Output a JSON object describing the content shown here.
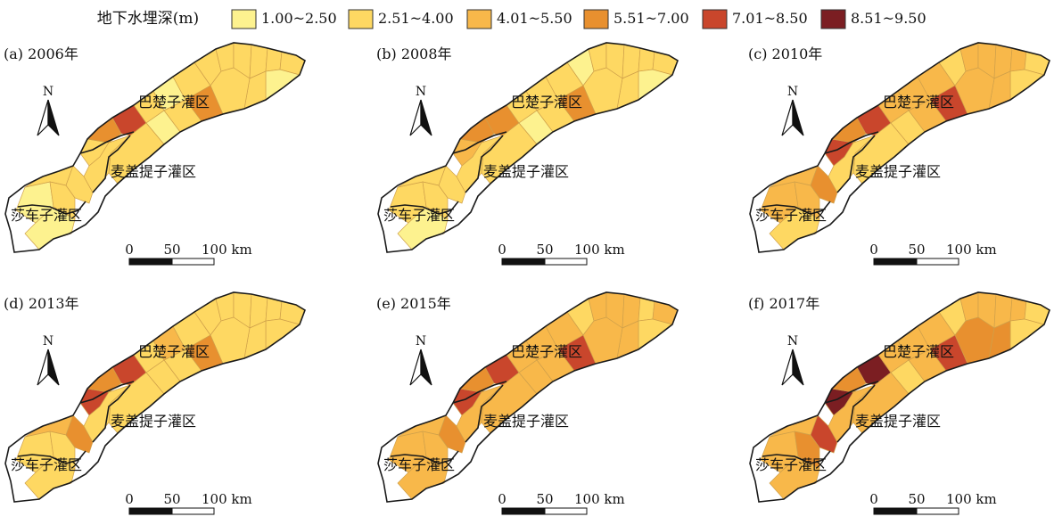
{
  "legend": {
    "title": "地下水埋深(m)",
    "classes": [
      {
        "label": "1.00~2.50",
        "color": "#fdf28f"
      },
      {
        "label": "2.51~4.00",
        "color": "#fed862"
      },
      {
        "label": "4.01~5.50",
        "color": "#f8b84a"
      },
      {
        "label": "5.51~7.00",
        "color": "#e8902f"
      },
      {
        "label": "7.01~8.50",
        "color": "#c9462c"
      },
      {
        "label": "8.51~9.50",
        "color": "#7b1e22"
      }
    ]
  },
  "districts": {
    "bachu": "巴楚子灌区",
    "maigaiti": "麦盖提子灌区",
    "shache": "莎车子灌区"
  },
  "north_label": "N",
  "scale": {
    "ticks": [
      "0",
      "50",
      "100 km"
    ]
  },
  "panels": [
    {
      "label": "(a) 2006年",
      "zones": [
        0,
        1,
        0,
        1,
        1,
        1,
        3,
        4,
        1,
        0,
        1,
        1,
        1,
        1,
        1,
        1,
        1,
        0,
        1,
        1,
        3,
        1,
        0,
        1,
        1
      ]
    },
    {
      "label": "(b) 2008年",
      "zones": [
        1,
        1,
        0,
        1,
        1,
        2,
        3,
        3,
        1,
        1,
        1,
        0,
        1,
        1,
        1,
        1,
        1,
        0,
        1,
        1,
        3,
        1,
        0,
        1,
        1
      ]
    },
    {
      "label": "(c) 2010年",
      "zones": [
        2,
        2,
        1,
        2,
        3,
        4,
        3,
        4,
        2,
        2,
        2,
        1,
        2,
        2,
        2,
        2,
        1,
        1,
        2,
        2,
        4,
        2,
        1,
        1,
        1
      ]
    },
    {
      "label": "(d) 2013年",
      "zones": [
        1,
        2,
        1,
        1,
        3,
        4,
        3,
        4,
        1,
        2,
        1,
        1,
        1,
        1,
        1,
        1,
        1,
        1,
        1,
        1,
        3,
        1,
        1,
        1,
        1
      ]
    },
    {
      "label": "(e) 2015年",
      "zones": [
        2,
        2,
        2,
        2,
        3,
        4,
        3,
        4,
        2,
        2,
        2,
        1,
        2,
        2,
        2,
        1,
        2,
        1,
        2,
        2,
        4,
        2,
        2,
        2,
        2
      ]
    },
    {
      "label": "(f) 2017年",
      "zones": [
        2,
        2,
        2,
        3,
        4,
        5,
        3,
        5,
        2,
        2,
        2,
        1,
        2,
        2,
        2,
        2,
        1,
        1,
        3,
        3,
        4,
        2,
        1,
        2,
        2
      ]
    }
  ]
}
